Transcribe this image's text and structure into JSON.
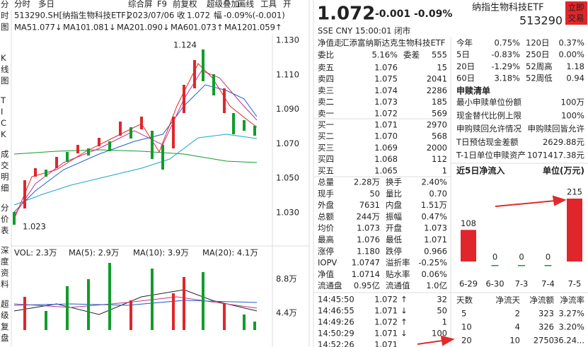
{
  "toolbar": {
    "tabs": [
      "分时",
      "多日"
    ],
    "tools": [
      "综合屏",
      "F9",
      "前复权",
      "超级叠加",
      "画线",
      "工具",
      "开"
    ]
  },
  "quote_line": {
    "code": "513290.SH[纳指生物科技ETF]",
    "date": "2023/07/06",
    "close_label": "收",
    "close": "1.072",
    "change_label": "幅",
    "change": "-0.09%(-0.001)"
  },
  "ma_legend": [
    {
      "name": "MA5",
      "value": "1.077↓",
      "color": "#e0262b"
    },
    {
      "name": "MA10",
      "value": "1.081↓",
      "color": "#1f5fd0"
    },
    {
      "name": "MA20",
      "value": "1.090↓",
      "color": "#1f5fd0"
    },
    {
      "name": "MA60",
      "value": "1.073↑",
      "color": "#18a8c8"
    },
    {
      "name": "MA120",
      "value": "1.059↑",
      "color": "#129c2c"
    }
  ],
  "side_tabs": [
    "分时图",
    "K线图",
    "TICK",
    "成交明细",
    "分价表",
    "深度资料",
    "超级复盘"
  ],
  "price_axis": [
    "1.130",
    "1.110",
    "1.090",
    "1.070",
    "1.050",
    "1.030"
  ],
  "annotations": [
    "1.124",
    "1.023"
  ],
  "volume_legend": [
    {
      "text": "VOL: 2.3万",
      "color": "#222"
    },
    {
      "text": "MA(5): 2.9万",
      "color": "#222"
    },
    {
      "text": "MA(10): 3.9万",
      "color": "#c2338a"
    },
    {
      "text": "MA(20): 4.1万",
      "color": "#1f5fd0"
    }
  ],
  "volume_axis": [
    "8.8万",
    "4.4万"
  ],
  "header": {
    "price": "1.072",
    "change": "-0.001",
    "pct": "-0.09%",
    "name": "纳指生物科技ETF",
    "code": "513290",
    "status": "SSE CNY 15:00:01 闭市",
    "button": [
      "立即",
      "交易"
    ]
  },
  "fund_name": {
    "label": "净值走",
    "value": "汇添富纳斯达克生物科技ETF"
  },
  "order_ratio": {
    "k1": "委比",
    "v1": "5.16%",
    "k2": "委差",
    "v2": "555"
  },
  "order_book": [
    {
      "label": "卖五",
      "price": "1.076",
      "volume": "15",
      "color": "#e0262b"
    },
    {
      "label": "卖四",
      "price": "1.075",
      "volume": "2041",
      "color": "#e0262b"
    },
    {
      "label": "卖三",
      "price": "1.074",
      "volume": "2286",
      "color": "#e0262b"
    },
    {
      "label": "卖二",
      "price": "1.073",
      "volume": "185",
      "color": "#222"
    },
    {
      "label": "卖一",
      "price": "1.072",
      "volume": "569",
      "color": "#129c2c"
    },
    {
      "label": "买一",
      "price": "1.071",
      "volume": "2970",
      "color": "#129c2c"
    },
    {
      "label": "买二",
      "price": "1.070",
      "volume": "568",
      "color": "#129c2c"
    },
    {
      "label": "买三",
      "price": "1.069",
      "volume": "2000",
      "color": "#129c2c"
    },
    {
      "label": "买四",
      "price": "1.068",
      "volume": "112",
      "color": "#129c2c"
    },
    {
      "label": "买五",
      "price": "1.065",
      "volume": "1",
      "color": "#129c2c"
    }
  ],
  "stats": [
    {
      "k1": "总量",
      "v1": "2.28万",
      "c1": "#222",
      "k2": "换手",
      "v2": "2.40%",
      "c2": "#222"
    },
    {
      "k1": "现手",
      "v1": "50",
      "c1": "#222",
      "k2": "量比",
      "v2": "0.70",
      "c2": "#222"
    },
    {
      "k1": "外盘",
      "v1": "7631",
      "c1": "#e0262b",
      "k2": "内盘",
      "v2": "1.51万",
      "c2": "#129c2c"
    },
    {
      "k1": "总额",
      "v1": "244万",
      "c1": "#222",
      "k2": "振幅",
      "v2": "0.47%",
      "c2": "#222"
    },
    {
      "k1": "均价",
      "v1": "1.073",
      "c1": "#222",
      "k2": "开盘",
      "v2": "1.073",
      "c2": "#222"
    },
    {
      "k1": "最高",
      "v1": "1.076",
      "c1": "#e0262b",
      "k2": "最低",
      "v2": "1.071",
      "c2": "#129c2c"
    },
    {
      "k1": "涨停",
      "v1": "1.180",
      "c1": "#e0262b",
      "k2": "跌停",
      "v2": "0.966",
      "c2": "#129c2c"
    },
    {
      "k1": "IOPV",
      "v1": "1.0747",
      "c1": "#222",
      "k2": "溢折率",
      "v2": "-0.25%",
      "c2": "#129c2c"
    },
    {
      "k1": "净值",
      "v1": "1.0714",
      "c1": "#222",
      "k2": "贴水率",
      "v2": "0.06%",
      "c2": "#e0262b"
    },
    {
      "k1": "流通盘",
      "v1": "0.95亿",
      "c1": "#222",
      "k2": "流通值",
      "v2": "1.0亿",
      "c2": "#222"
    }
  ],
  "trades": [
    {
      "time": "14:45:50",
      "price": "1.072",
      "arrow": "↑",
      "volume": "32",
      "color": "#e0262b"
    },
    {
      "time": "14:46:55",
      "price": "1.071",
      "arrow": "↓",
      "volume": "50",
      "color": "#129c2c"
    },
    {
      "time": "14:49:26",
      "price": "1.072",
      "arrow": "↑",
      "volume": "1",
      "color": "#e0262b"
    },
    {
      "time": "14:50:29",
      "price": "1.071",
      "arrow": "↓",
      "volume": "100",
      "color": "#129c2c"
    },
    {
      "time": "14:52:26",
      "price": "1.071",
      "arrow": "",
      "volume": "",
      "color": "#129c2c"
    }
  ],
  "returns": [
    {
      "k1": "今年",
      "v1": "0.75%",
      "c1": "#e0262b",
      "k2": "120日",
      "v2": "0.37%",
      "c2": "#e0262b"
    },
    {
      "k1": "5日",
      "v1": "-0.83%",
      "c1": "#129c2c",
      "k2": "250日",
      "v2": "0.00%",
      "c2": "#222"
    },
    {
      "k1": "20日",
      "v1": "-1.29%",
      "c1": "#129c2c",
      "k2": "52周高",
      "v2": "1.18",
      "c2": "#222"
    },
    {
      "k1": "60日",
      "v1": "3.18%",
      "c1": "#e0262b",
      "k2": "52周低",
      "v2": "0.94",
      "c2": "#222"
    }
  ],
  "subscription": {
    "title": "申赎清单",
    "rows": [
      {
        "key": "最小申赎单位份额",
        "value": "100万"
      },
      {
        "key": "现金替代比例上限",
        "value": "100%"
      },
      {
        "key": "申购赎回允许情况",
        "value": "申购赎回皆允许"
      },
      {
        "key": "T日预估现金差额",
        "value": "2629.88元"
      },
      {
        "key": "T-1日单位申赎资产",
        "value": "1071417.38元"
      }
    ]
  },
  "chart_data": {
    "type": "bar",
    "title": "近5日净流入",
    "unit": "单位(万元)",
    "categories": [
      "6-29",
      "6-30",
      "7-3",
      "7-4",
      "7-5"
    ],
    "values": [
      108,
      0,
      0,
      0,
      215
    ],
    "colors": [
      "#e0262b",
      "#129c2c",
      "#129c2c",
      "#129c2c",
      "#e0262b"
    ],
    "ylim": [
      0,
      215
    ]
  },
  "flow_table": {
    "header": [
      "天数",
      "净流天",
      "净流额",
      "净流率"
    ],
    "rows": [
      [
        "5",
        "2",
        "323",
        "3.27%"
      ],
      [
        "10",
        "4",
        "326",
        "3.20%"
      ],
      [
        "20",
        "10",
        "2750",
        "36.24..."
      ]
    ]
  }
}
